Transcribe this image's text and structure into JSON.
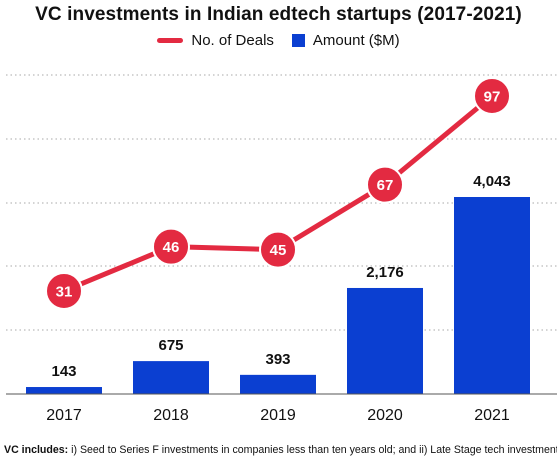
{
  "chart_data": {
    "type": "bar",
    "title": "VC investments in Indian edtech startups (2017-2021)",
    "categories": [
      "2017",
      "2018",
      "2019",
      "2020",
      "2021"
    ],
    "series": [
      {
        "name": "Amount ($M)",
        "type": "bar",
        "values": [
          143,
          675,
          393,
          2176,
          4043
        ],
        "labels": [
          "143",
          "675",
          "393",
          "2,176",
          "4,043"
        ],
        "color": "#0b3fd1"
      },
      {
        "name": "No. of Deals",
        "type": "line",
        "values": [
          31,
          46,
          45,
          67,
          97
        ],
        "labels": [
          "31",
          "46",
          "45",
          "67",
          "97"
        ],
        "color": "#e32a41"
      }
    ],
    "xlabel": "",
    "ylabel": "",
    "grid": true,
    "legend_position": "top-center"
  },
  "footnote": {
    "label": "VC includes:",
    "text": " i) Seed to Series F investments in companies less than ten years old; and ii) Late Stage tech investments"
  }
}
